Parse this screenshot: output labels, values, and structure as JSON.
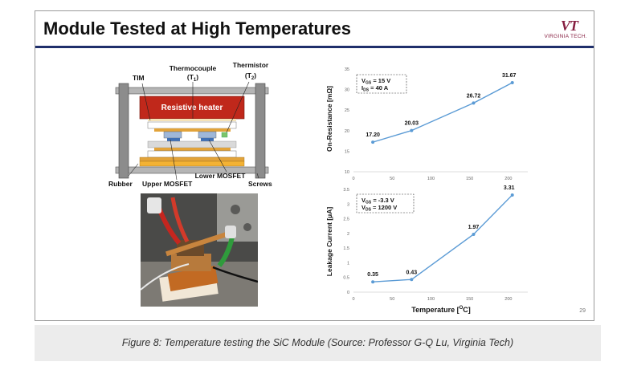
{
  "slide": {
    "title": "Module Tested at High Temperatures",
    "logo": {
      "mark": "VT",
      "text": "VIRGINIA TECH."
    },
    "page_number": "29"
  },
  "diagram": {
    "labels": {
      "tim": "TIM",
      "thermocouple": "Thermocouple",
      "t1": "(T",
      "t1_sub": "1",
      "thermistor": "Thermistor",
      "t2": "(T",
      "t2_sub": "2",
      "heater": "Resistive heater",
      "rubber": "Rubber",
      "upper_mosfet": "Upper MOSFET",
      "lower_mosfet": "Lower MOSFET",
      "screws": "Screws"
    },
    "colors": {
      "heater": "#c0281b",
      "frame": "#8c8c8c",
      "copper": "#e2a33a",
      "substrate": "#f3d9a8"
    }
  },
  "chart_data": [
    {
      "type": "line",
      "x": [
        25,
        75,
        155,
        205
      ],
      "values": [
        17.2,
        20.03,
        26.72,
        31.67
      ],
      "data_labels": [
        "17.20",
        "20.03",
        "26.72",
        "31.67"
      ],
      "ylabel": "On-Resistance [mΩ]",
      "xlabel": "",
      "xlim": [
        0,
        225
      ],
      "ylim": [
        10,
        35
      ],
      "xticks": [
        "0",
        "50",
        "100",
        "150",
        "200"
      ],
      "yticks": [
        "10",
        "15",
        "20",
        "25",
        "30",
        "35"
      ],
      "annotation": {
        "line1": "V",
        "line1_sub": "GS",
        "line1_rest": " = 15 V",
        "line2": "I",
        "line2_sub": "DS",
        "line2_rest": " = 40 A"
      },
      "color": "#5b9bd5"
    },
    {
      "type": "line",
      "x": [
        25,
        75,
        155,
        205
      ],
      "values": [
        0.35,
        0.43,
        1.97,
        3.31
      ],
      "data_labels": [
        "0.35",
        "0.43",
        "1.97",
        "3.31"
      ],
      "ylabel": "Leakage Current [μA]",
      "xlabel": "Temperature [",
      "xlabel_sup": "O",
      "xlabel_rest": "C]",
      "xlim": [
        0,
        225
      ],
      "ylim": [
        0,
        3.5
      ],
      "xticks": [
        "0",
        "50",
        "100",
        "150",
        "200"
      ],
      "yticks": [
        "0",
        "0.5",
        "1",
        "1.5",
        "2",
        "2.5",
        "3",
        "3.5"
      ],
      "annotation": {
        "line1": "V",
        "line1_sub": "GS",
        "line1_rest": " = -3.3 V",
        "line2": "V",
        "line2_sub": "DS",
        "line2_rest": " = 1200 V"
      },
      "color": "#5b9bd5"
    }
  ],
  "caption": "Figure 8: Temperature testing the SiC Module (Source: Professor G-Q Lu, Virginia Tech)"
}
